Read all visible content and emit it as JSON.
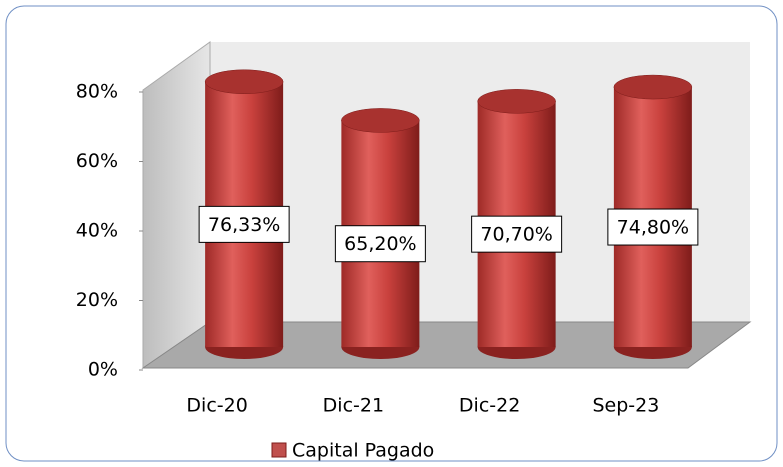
{
  "chart_data": {
    "type": "bar",
    "categories": [
      "Dic-20",
      "Dic-21",
      "Dic-22",
      "Sep-23"
    ],
    "series": [
      {
        "name": "Capital Pagado",
        "color": "#c0504d",
        "values": [
          76.33,
          65.2,
          70.7,
          74.8
        ],
        "value_labels": [
          "76,33%",
          "65,20%",
          "70,70%",
          "74,80%"
        ]
      }
    ],
    "ylim": [
      0,
      80
    ],
    "yticks": [
      {
        "value": 0,
        "label": "0%"
      },
      {
        "value": 20,
        "label": "20%"
      },
      {
        "value": 40,
        "label": "40%"
      },
      {
        "value": 60,
        "label": "60%"
      },
      {
        "value": 80,
        "label": "80%"
      }
    ],
    "legend": "bottom"
  }
}
